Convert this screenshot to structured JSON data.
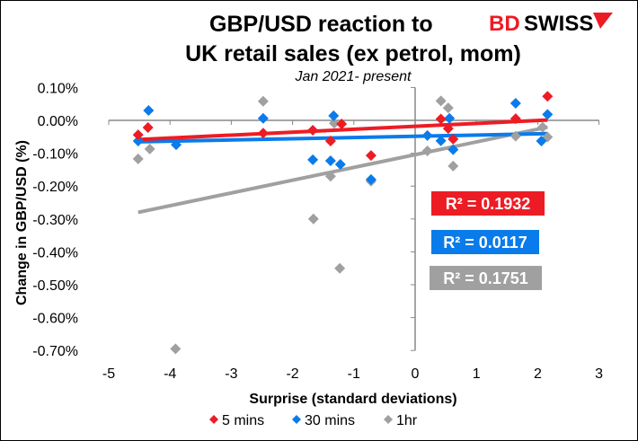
{
  "chart_data": {
    "type": "scatter",
    "title": "GBP/USD reaction to",
    "title_line2": "UK retail sales (ex petrol, mom)",
    "subtitle": "Jan 2021- present",
    "logo_text": "BDSWISS",
    "xlabel": "Surprise (standard deviations)",
    "ylabel": "Change in GBP/USD  (%)",
    "xlim": [
      -5,
      3
    ],
    "ylim": [
      -0.7,
      0.1
    ],
    "x_ticks": [
      "-5",
      "-4",
      "-3",
      "-2",
      "-1",
      "0",
      "1",
      "2",
      "3"
    ],
    "y_ticks": [
      "0.10%",
      "0.00%",
      "-0.10%",
      "-0.20%",
      "-0.30%",
      "-0.40%",
      "-0.50%",
      "-0.60%",
      "-0.70%"
    ],
    "grid": false,
    "legend_position": "bottom",
    "trendlines": true,
    "series": [
      {
        "name": "5 mins",
        "color": "#ED1C24",
        "r2_label": "R² = 0.1932",
        "points": [
          [
            -4.52,
            -0.044
          ],
          [
            -4.36,
            -0.022
          ],
          [
            -2.48,
            -0.039
          ],
          [
            -1.67,
            -0.03
          ],
          [
            -1.38,
            -0.063
          ],
          [
            -1.2,
            -0.011
          ],
          [
            -0.72,
            -0.107
          ],
          [
            0.42,
            0.004
          ],
          [
            0.54,
            -0.025
          ],
          [
            0.62,
            -0.057
          ],
          [
            1.64,
            0.005
          ],
          [
            2.16,
            0.073
          ]
        ]
      },
      {
        "name": "30 mins",
        "color": "#0A7BEA",
        "r2_label": "R² = 0.0117",
        "points": [
          [
            -4.35,
            0.03
          ],
          [
            -4.52,
            -0.063
          ],
          [
            -3.9,
            -0.074
          ],
          [
            -2.48,
            0.006
          ],
          [
            -1.67,
            -0.12
          ],
          [
            -1.38,
            -0.123
          ],
          [
            -1.22,
            -0.134
          ],
          [
            -1.33,
            0.014
          ],
          [
            -0.72,
            -0.18
          ],
          [
            0.2,
            -0.046
          ],
          [
            0.42,
            -0.062
          ],
          [
            0.56,
            0.006
          ],
          [
            0.62,
            -0.089
          ],
          [
            1.64,
            0.052
          ],
          [
            2.16,
            0.018
          ],
          [
            2.06,
            -0.063
          ]
        ]
      },
      {
        "name": "1hr",
        "color": "#A0A0A0",
        "r2_label": "R² = 0.1751",
        "points": [
          [
            -4.52,
            -0.117
          ],
          [
            -4.33,
            -0.087
          ],
          [
            -3.91,
            -0.695
          ],
          [
            -2.48,
            0.058
          ],
          [
            -1.32,
            -0.009
          ],
          [
            -1.38,
            -0.17
          ],
          [
            -1.66,
            -0.3
          ],
          [
            -1.23,
            -0.45
          ],
          [
            -0.72,
            -0.185
          ],
          [
            0.2,
            -0.093
          ],
          [
            0.42,
            0.059
          ],
          [
            0.54,
            0.038
          ],
          [
            0.62,
            -0.139
          ],
          [
            1.64,
            -0.048
          ],
          [
            2.16,
            -0.051
          ],
          [
            2.08,
            -0.021
          ]
        ]
      }
    ]
  }
}
